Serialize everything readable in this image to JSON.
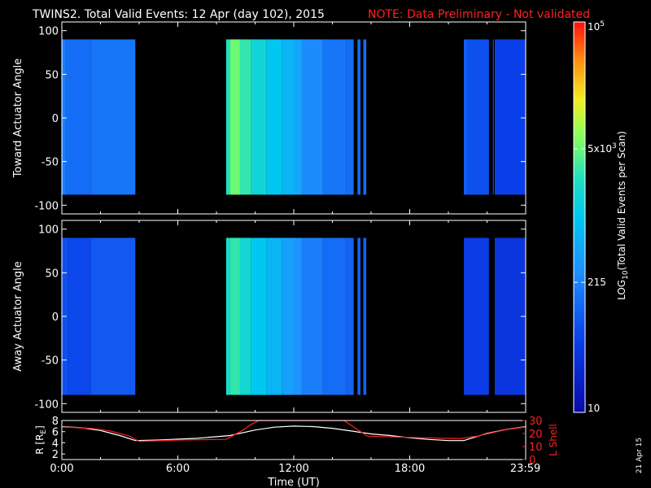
{
  "title": "TWINS2. Total Valid Events: 12 Apr (day 102), 2015",
  "note": "NOTE: Data Preliminary - Not validated",
  "date_stamp": "21 Apr 15",
  "colors": {
    "background": "#000000",
    "note": "#ff2020",
    "frame": "#ffffff",
    "lshell": "#ff2020",
    "radius": "#ffffff"
  },
  "chart_data": [
    {
      "type": "heatmap",
      "name": "toward",
      "ylabel": "Toward Actuator Angle",
      "ylim": [
        -110,
        110
      ],
      "yticks": [
        -100,
        -50,
        0,
        50,
        100
      ],
      "xlim": [
        0,
        24
      ],
      "data_ylim": [
        -88,
        90
      ],
      "segments": [
        {
          "start": 0.0,
          "end": 0.2,
          "level": 0.33
        },
        {
          "start": 0.2,
          "end": 1.5,
          "level": 0.28
        },
        {
          "start": 1.5,
          "end": 3.8,
          "level": 0.3
        },
        {
          "start": 8.5,
          "end": 8.7,
          "level": 0.6
        },
        {
          "start": 8.7,
          "end": 9.2,
          "level": 0.68
        },
        {
          "start": 9.2,
          "end": 9.8,
          "level": 0.62
        },
        {
          "start": 9.8,
          "end": 10.6,
          "level": 0.55
        },
        {
          "start": 10.6,
          "end": 11.4,
          "level": 0.5
        },
        {
          "start": 11.4,
          "end": 12.0,
          "level": 0.45
        },
        {
          "start": 12.0,
          "end": 12.4,
          "level": 0.42
        },
        {
          "start": 12.4,
          "end": 13.5,
          "level": 0.35
        },
        {
          "start": 13.5,
          "end": 14.7,
          "level": 0.3
        },
        {
          "start": 14.7,
          "end": 15.1,
          "level": 0.28
        },
        {
          "start": 15.3,
          "end": 15.45,
          "level": 0.28
        },
        {
          "start": 15.6,
          "end": 15.75,
          "level": 0.28
        },
        {
          "start": 20.8,
          "end": 21.0,
          "level": 0.25
        },
        {
          "start": 21.0,
          "end": 22.1,
          "level": 0.22
        },
        {
          "start": 22.3,
          "end": 22.35,
          "level": 0.2
        },
        {
          "start": 22.4,
          "end": 24.0,
          "level": 0.18
        }
      ]
    },
    {
      "type": "heatmap",
      "name": "away",
      "ylabel": "Away Actuator Angle",
      "ylim": [
        -110,
        110
      ],
      "yticks": [
        -100,
        -50,
        0,
        50,
        100
      ],
      "xlim": [
        0,
        24
      ],
      "data_ylim": [
        -90,
        90
      ],
      "segments": [
        {
          "start": 0.0,
          "end": 0.3,
          "level": 0.22
        },
        {
          "start": 0.3,
          "end": 1.5,
          "level": 0.2
        },
        {
          "start": 1.5,
          "end": 3.8,
          "level": 0.24
        },
        {
          "start": 8.5,
          "end": 8.7,
          "level": 0.58
        },
        {
          "start": 8.7,
          "end": 9.2,
          "level": 0.62
        },
        {
          "start": 9.2,
          "end": 9.8,
          "level": 0.56
        },
        {
          "start": 9.8,
          "end": 10.6,
          "level": 0.5
        },
        {
          "start": 10.6,
          "end": 11.4,
          "level": 0.45
        },
        {
          "start": 11.4,
          "end": 12.0,
          "level": 0.4
        },
        {
          "start": 12.0,
          "end": 12.4,
          "level": 0.37
        },
        {
          "start": 12.4,
          "end": 13.5,
          "level": 0.32
        },
        {
          "start": 13.5,
          "end": 14.7,
          "level": 0.28
        },
        {
          "start": 14.7,
          "end": 15.1,
          "level": 0.26
        },
        {
          "start": 15.3,
          "end": 15.45,
          "level": 0.26
        },
        {
          "start": 15.6,
          "end": 15.75,
          "level": 0.26
        },
        {
          "start": 20.8,
          "end": 22.1,
          "level": 0.17
        },
        {
          "start": 22.4,
          "end": 24.0,
          "level": 0.15
        }
      ]
    },
    {
      "type": "line",
      "name": "orbit",
      "xlabel": "Time (UT)",
      "xlim": [
        0,
        24
      ],
      "xticks": [
        {
          "value": 0,
          "label": "0:00"
        },
        {
          "value": 6,
          "label": "6:00"
        },
        {
          "value": 12,
          "label": "12:00"
        },
        {
          "value": 18,
          "label": "18:00"
        },
        {
          "value": 23.983,
          "label": "23:59"
        }
      ],
      "left_axis": {
        "label": "R [RE]",
        "label_main": "R [R",
        "label_sub": "E",
        "label_end": "]",
        "ylim": [
          1,
          8
        ],
        "ticks": [
          2,
          4,
          6,
          8
        ]
      },
      "right_axis": {
        "label": "L Shell",
        "ylim": [
          0,
          30
        ],
        "ticks": [
          0,
          10,
          20,
          30
        ]
      },
      "series": [
        {
          "name": "R [RE]",
          "axis": "left",
          "x": [
            0,
            1,
            2,
            3,
            3.8,
            5,
            7,
            8.7,
            10,
            11,
            12,
            13,
            14,
            15,
            16,
            17,
            18,
            19,
            20,
            20.8,
            22,
            23,
            24
          ],
          "y": [
            6.9,
            6.7,
            6.2,
            5.3,
            4.4,
            4.5,
            4.8,
            5.3,
            6.3,
            6.8,
            7.0,
            6.9,
            6.6,
            6.1,
            5.6,
            5.3,
            4.9,
            4.6,
            4.4,
            4.4,
            5.7,
            6.4,
            6.9
          ]
        },
        {
          "name": "L Shell",
          "axis": "right",
          "x": [
            0,
            1.5,
            2.5,
            3.5,
            4,
            6,
            8.5,
            9.3,
            9.8,
            10.2,
            14.6,
            15.3,
            15.8,
            18,
            20.6,
            21.5,
            23,
            24
          ],
          "y": [
            25,
            24,
            22,
            18,
            14,
            15,
            15.5,
            22,
            27,
            30,
            30,
            23,
            18,
            17,
            16,
            18,
            23,
            25
          ]
        }
      ]
    }
  ],
  "colorbar": {
    "label_pre": "LOG",
    "label_sub": "10",
    "label_post": "(Total Valid Events per Scan)",
    "range": [
      10,
      100000
    ],
    "ticks": [
      {
        "value": 100000,
        "base": "10",
        "exp": "5",
        "level": 1.0
      },
      {
        "value": 5000,
        "base": "5x10",
        "exp": "3",
        "level": 0.675
      },
      {
        "value": 215,
        "base": "215",
        "exp": "",
        "level": 0.333
      },
      {
        "value": 10,
        "base": "10",
        "exp": "",
        "level": 0.0
      }
    ]
  }
}
